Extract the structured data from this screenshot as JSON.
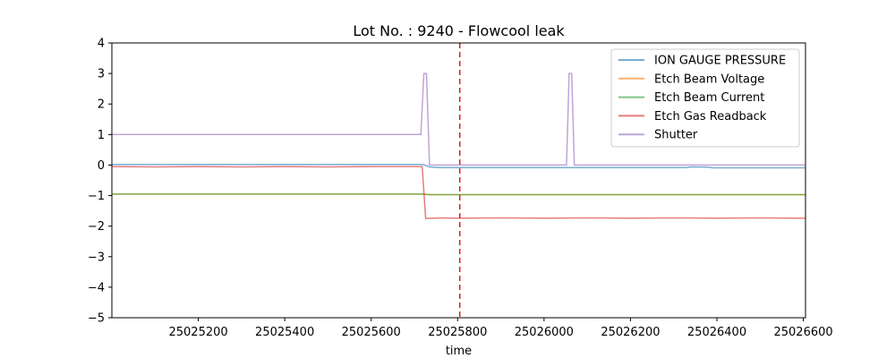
{
  "chart_data": {
    "type": "line",
    "title": "Lot No. : 9240 - Flowcool leak",
    "xlabel": "time",
    "ylabel": "",
    "xlim": [
      25025000,
      25026605
    ],
    "ylim": [
      -5,
      4
    ],
    "x_ticks": [
      25025200,
      25025400,
      25025600,
      25025800,
      25026000,
      25026200,
      25026400,
      25026600
    ],
    "y_ticks": [
      4,
      3,
      2,
      1,
      0,
      -1,
      -2,
      -3,
      -4,
      -5
    ],
    "x_tick_labels": [
      "25025200",
      "25025400",
      "25025600",
      "25025800",
      "25026000",
      "25026200",
      "25026400",
      "25026600"
    ],
    "y_tick_labels": [
      "4",
      "3",
      "2",
      "1",
      "0",
      "−1",
      "−2",
      "−3",
      "−4",
      "−5"
    ],
    "grid": false,
    "legend_position": "upper right",
    "vline": {
      "x": 25025805,
      "color": "#e41a1c",
      "style": "dashed"
    },
    "series": [
      {
        "name": "ION GAUGE PRESSURE",
        "color": "#1f77b4",
        "points": [
          [
            25025000,
            0.02
          ],
          [
            25025720,
            0.02
          ],
          [
            25025735,
            -0.06
          ],
          [
            25025760,
            -0.08
          ],
          [
            25026330,
            -0.08
          ],
          [
            25026340,
            -0.06
          ],
          [
            25026380,
            -0.07
          ],
          [
            25026390,
            -0.09
          ],
          [
            25026605,
            -0.09
          ]
        ]
      },
      {
        "name": "Etch Beam Voltage",
        "color": "#ff7f0e",
        "points": [
          [
            25025000,
            -0.95
          ],
          [
            25025720,
            -0.95
          ],
          [
            25025735,
            -0.97
          ],
          [
            25026605,
            -0.97
          ]
        ]
      },
      {
        "name": "Etch Beam Current",
        "color": "#2ca02c",
        "points": [
          [
            25025000,
            -0.95
          ],
          [
            25025720,
            -0.95
          ],
          [
            25025735,
            -0.97
          ],
          [
            25026605,
            -0.97
          ]
        ]
      },
      {
        "name": "Etch Gas Readback",
        "color": "#d62728",
        "points": [
          [
            25025000,
            -0.05
          ],
          [
            25025100,
            -0.06
          ],
          [
            25025200,
            -0.05
          ],
          [
            25025300,
            -0.06
          ],
          [
            25025400,
            -0.05
          ],
          [
            25025500,
            -0.06
          ],
          [
            25025600,
            -0.05
          ],
          [
            25025718,
            -0.05
          ],
          [
            25025726,
            -1.75
          ],
          [
            25025760,
            -1.73
          ],
          [
            25025800,
            -1.74
          ],
          [
            25025900,
            -1.73
          ],
          [
            25026000,
            -1.74
          ],
          [
            25026100,
            -1.73
          ],
          [
            25026200,
            -1.74
          ],
          [
            25026300,
            -1.73
          ],
          [
            25026400,
            -1.74
          ],
          [
            25026500,
            -1.73
          ],
          [
            25026605,
            -1.74
          ]
        ]
      },
      {
        "name": "Shutter",
        "color": "#9467bd",
        "points": [
          [
            25025000,
            1
          ],
          [
            25025715,
            1
          ],
          [
            25025722,
            3
          ],
          [
            25025728,
            3
          ],
          [
            25025735,
            0
          ],
          [
            25026052,
            0
          ],
          [
            25026058,
            3
          ],
          [
            25026064,
            3
          ],
          [
            25026070,
            0
          ],
          [
            25026605,
            0
          ]
        ]
      }
    ]
  }
}
